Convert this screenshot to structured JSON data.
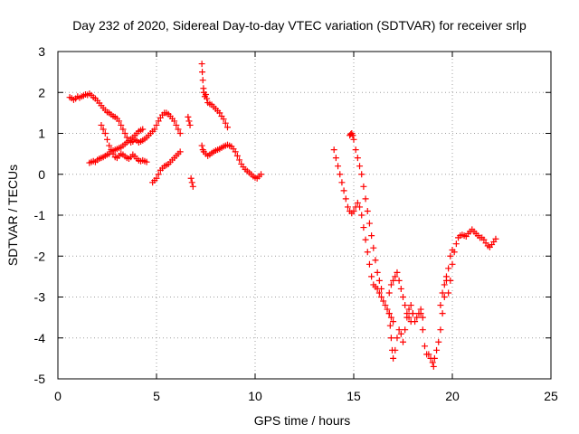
{
  "chart_data": {
    "type": "scatter",
    "title": "Day 232 of 2020, Sidereal Day-to-day VTEC variation (SDTVAR) for receiver srlp",
    "xlabel": "GPS time / hours",
    "ylabel": "SDTVAR / TECUs",
    "xlim": [
      0,
      25
    ],
    "ylim": [
      -5,
      3
    ],
    "x_ticks": [
      0,
      5,
      10,
      15,
      20,
      25
    ],
    "y_ticks": [
      -5,
      -4,
      -3,
      -2,
      -1,
      0,
      1,
      2,
      3
    ],
    "x_tick_labels": [
      "0",
      "5",
      "10",
      "15",
      "20",
      "25"
    ],
    "y_tick_labels": [
      "-5",
      "-4",
      "-3",
      "-2",
      "-1",
      "0",
      "1",
      "2",
      "3"
    ],
    "grid": true,
    "marker": "plus",
    "color": "#ff0000",
    "series": [
      {
        "points": [
          [
            0.6,
            1.88
          ],
          [
            0.7,
            1.86
          ],
          [
            0.8,
            1.82
          ],
          [
            0.9,
            1.85
          ],
          [
            1.0,
            1.9
          ],
          [
            1.1,
            1.87
          ],
          [
            1.2,
            1.9
          ],
          [
            1.3,
            1.92
          ],
          [
            1.4,
            1.95
          ],
          [
            1.5,
            1.94
          ],
          [
            1.6,
            1.97
          ],
          [
            1.7,
            1.93
          ],
          [
            1.8,
            1.88
          ],
          [
            1.9,
            1.85
          ],
          [
            2.0,
            1.8
          ],
          [
            2.1,
            1.74
          ],
          [
            2.2,
            1.68
          ],
          [
            2.3,
            1.62
          ],
          [
            2.4,
            1.57
          ],
          [
            2.5,
            1.52
          ],
          [
            2.6,
            1.5
          ],
          [
            2.7,
            1.46
          ],
          [
            2.8,
            1.42
          ],
          [
            2.9,
            1.4
          ],
          [
            3.0,
            1.36
          ],
          [
            3.1,
            1.3
          ],
          [
            3.2,
            1.2
          ],
          [
            3.3,
            1.1
          ],
          [
            3.4,
            1.0
          ],
          [
            3.5,
            0.9
          ],
          [
            3.6,
            0.82
          ],
          [
            3.7,
            0.78
          ],
          [
            3.8,
            0.8
          ],
          [
            3.9,
            0.85
          ],
          [
            4.0,
            0.82
          ],
          [
            4.1,
            0.78
          ],
          [
            4.2,
            0.8
          ],
          [
            4.3,
            0.83
          ],
          [
            4.4,
            0.86
          ],
          [
            4.5,
            0.9
          ],
          [
            4.6,
            0.95
          ],
          [
            4.7,
            1.0
          ],
          [
            4.8,
            1.05
          ],
          [
            4.9,
            1.1
          ],
          [
            5.0,
            1.2
          ],
          [
            5.1,
            1.3
          ],
          [
            5.2,
            1.38
          ],
          [
            5.3,
            1.45
          ],
          [
            5.4,
            1.5
          ],
          [
            5.5,
            1.5
          ],
          [
            5.6,
            1.47
          ],
          [
            5.7,
            1.42
          ],
          [
            5.8,
            1.36
          ],
          [
            5.9,
            1.3
          ],
          [
            6.0,
            1.2
          ],
          [
            6.1,
            1.1
          ],
          [
            6.2,
            1.0
          ]
        ]
      },
      {
        "points": [
          [
            1.6,
            0.28
          ],
          [
            1.7,
            0.3
          ],
          [
            1.8,
            0.32
          ],
          [
            1.9,
            0.3
          ],
          [
            2.0,
            0.35
          ],
          [
            2.1,
            0.38
          ],
          [
            2.2,
            0.4
          ],
          [
            2.3,
            0.42
          ],
          [
            2.4,
            0.45
          ],
          [
            2.5,
            0.48
          ],
          [
            2.6,
            0.5
          ],
          [
            2.7,
            0.55
          ],
          [
            2.8,
            0.58
          ],
          [
            2.9,
            0.6
          ],
          [
            3.0,
            0.62
          ],
          [
            3.1,
            0.64
          ],
          [
            3.2,
            0.66
          ],
          [
            3.3,
            0.7
          ],
          [
            3.4,
            0.74
          ],
          [
            3.5,
            0.78
          ],
          [
            3.6,
            0.82
          ],
          [
            3.7,
            0.86
          ],
          [
            3.8,
            0.9
          ],
          [
            3.9,
            0.95
          ],
          [
            4.0,
            1.0
          ],
          [
            4.1,
            1.05
          ],
          [
            4.2,
            1.08
          ],
          [
            4.3,
            1.1
          ]
        ]
      },
      {
        "points": [
          [
            2.2,
            1.2
          ],
          [
            2.3,
            1.1
          ],
          [
            2.4,
            1.0
          ],
          [
            2.5,
            0.85
          ],
          [
            2.6,
            0.7
          ],
          [
            2.7,
            0.6
          ],
          [
            2.8,
            0.5
          ],
          [
            2.9,
            0.42
          ],
          [
            3.0,
            0.4
          ],
          [
            3.1,
            0.45
          ],
          [
            3.2,
            0.5
          ],
          [
            3.3,
            0.48
          ],
          [
            3.4,
            0.44
          ],
          [
            3.5,
            0.4
          ],
          [
            3.6,
            0.38
          ],
          [
            3.7,
            0.42
          ],
          [
            3.8,
            0.48
          ],
          [
            3.9,
            0.44
          ],
          [
            4.0,
            0.38
          ],
          [
            4.1,
            0.34
          ],
          [
            4.2,
            0.32
          ],
          [
            4.3,
            0.34
          ],
          [
            4.4,
            0.32
          ],
          [
            4.5,
            0.3
          ]
        ]
      },
      {
        "points": [
          [
            4.8,
            -0.2
          ],
          [
            4.9,
            -0.15
          ],
          [
            5.0,
            -0.1
          ],
          [
            5.1,
            0.0
          ],
          [
            5.2,
            0.1
          ],
          [
            5.3,
            0.15
          ],
          [
            5.4,
            0.2
          ],
          [
            5.5,
            0.22
          ],
          [
            5.6,
            0.25
          ],
          [
            5.7,
            0.3
          ],
          [
            5.8,
            0.35
          ],
          [
            5.9,
            0.4
          ],
          [
            6.0,
            0.45
          ],
          [
            6.1,
            0.5
          ],
          [
            6.2,
            0.55
          ]
        ]
      },
      {
        "points": [
          [
            6.6,
            1.4
          ],
          [
            6.65,
            1.3
          ],
          [
            6.7,
            1.2
          ],
          [
            6.75,
            -0.1
          ],
          [
            6.8,
            -0.2
          ],
          [
            6.85,
            -0.3
          ]
        ]
      },
      {
        "points": [
          [
            7.3,
            2.7
          ],
          [
            7.32,
            2.5
          ],
          [
            7.35,
            2.3
          ],
          [
            7.38,
            2.1
          ],
          [
            7.4,
            2.0
          ],
          [
            7.45,
            1.9
          ],
          [
            7.5,
            1.95
          ],
          [
            7.55,
            1.85
          ],
          [
            7.6,
            1.75
          ],
          [
            7.7,
            1.72
          ],
          [
            7.8,
            1.7
          ],
          [
            7.9,
            1.65
          ],
          [
            8.0,
            1.6
          ],
          [
            8.1,
            1.55
          ],
          [
            8.2,
            1.5
          ],
          [
            8.3,
            1.42
          ],
          [
            8.4,
            1.35
          ],
          [
            8.5,
            1.25
          ],
          [
            8.6,
            1.15
          ]
        ]
      },
      {
        "points": [
          [
            7.3,
            0.7
          ],
          [
            7.35,
            0.6
          ],
          [
            7.4,
            0.55
          ],
          [
            7.5,
            0.5
          ],
          [
            7.6,
            0.45
          ],
          [
            7.7,
            0.48
          ],
          [
            7.8,
            0.52
          ],
          [
            7.9,
            0.55
          ],
          [
            8.0,
            0.58
          ],
          [
            8.1,
            0.6
          ],
          [
            8.2,
            0.62
          ],
          [
            8.3,
            0.65
          ],
          [
            8.4,
            0.68
          ],
          [
            8.5,
            0.7
          ],
          [
            8.6,
            0.72
          ],
          [
            8.7,
            0.7
          ],
          [
            8.8,
            0.68
          ],
          [
            8.9,
            0.62
          ],
          [
            9.0,
            0.55
          ],
          [
            9.1,
            0.45
          ],
          [
            9.2,
            0.35
          ],
          [
            9.3,
            0.25
          ],
          [
            9.4,
            0.18
          ],
          [
            9.5,
            0.12
          ],
          [
            9.6,
            0.08
          ],
          [
            9.7,
            0.04
          ],
          [
            9.8,
            0.0
          ],
          [
            9.9,
            -0.05
          ],
          [
            10.0,
            -0.08
          ],
          [
            10.1,
            -0.1
          ],
          [
            10.2,
            -0.05
          ],
          [
            10.3,
            0.0
          ]
        ]
      },
      {
        "points": [
          [
            14.0,
            0.6
          ],
          [
            14.1,
            0.4
          ],
          [
            14.2,
            0.2
          ],
          [
            14.3,
            0.0
          ],
          [
            14.4,
            -0.2
          ],
          [
            14.5,
            -0.4
          ],
          [
            14.6,
            -0.6
          ],
          [
            14.7,
            -0.8
          ],
          [
            14.8,
            -0.9
          ],
          [
            14.9,
            -0.95
          ],
          [
            15.0,
            -0.9
          ],
          [
            15.1,
            -0.8
          ],
          [
            15.2,
            -0.7
          ],
          [
            15.3,
            -0.8
          ],
          [
            15.4,
            -1.0
          ],
          [
            15.5,
            -1.3
          ],
          [
            15.6,
            -1.6
          ],
          [
            15.7,
            -1.9
          ],
          [
            15.8,
            -2.2
          ],
          [
            15.9,
            -2.5
          ],
          [
            16.0,
            -2.7
          ],
          [
            16.1,
            -2.75
          ],
          [
            16.2,
            -2.8
          ],
          [
            16.3,
            -2.9
          ],
          [
            16.4,
            -3.0
          ],
          [
            16.5,
            -3.1
          ],
          [
            16.6,
            -3.2
          ],
          [
            16.7,
            -3.3
          ],
          [
            16.8,
            -3.4
          ],
          [
            16.9,
            -3.5
          ],
          [
            17.0,
            -3.6
          ]
        ]
      },
      {
        "points": [
          [
            14.8,
            0.95
          ],
          [
            14.85,
            0.98
          ],
          [
            14.9,
            1.0
          ],
          [
            14.95,
            0.95
          ],
          [
            15.0,
            0.85
          ],
          [
            15.1,
            0.6
          ],
          [
            15.2,
            0.4
          ],
          [
            15.3,
            0.2
          ],
          [
            15.4,
            0.0
          ],
          [
            15.5,
            -0.3
          ],
          [
            15.6,
            -0.6
          ],
          [
            15.7,
            -0.9
          ],
          [
            15.8,
            -1.2
          ],
          [
            15.9,
            -1.5
          ],
          [
            16.0,
            -1.8
          ],
          [
            16.1,
            -2.1
          ],
          [
            16.2,
            -2.4
          ],
          [
            16.3,
            -2.6
          ],
          [
            16.4,
            -2.8
          ]
        ]
      },
      {
        "points": [
          [
            16.8,
            -3.4
          ],
          [
            16.85,
            -3.7
          ],
          [
            16.9,
            -4.0
          ],
          [
            16.95,
            -4.3
          ],
          [
            17.0,
            -4.5
          ],
          [
            17.1,
            -4.3
          ],
          [
            17.2,
            -4.0
          ],
          [
            17.3,
            -3.8
          ],
          [
            17.4,
            -3.9
          ],
          [
            17.5,
            -4.1
          ],
          [
            17.6,
            -3.8
          ],
          [
            17.7,
            -3.5
          ],
          [
            17.8,
            -3.3
          ],
          [
            17.9,
            -3.2
          ],
          [
            18.0,
            -3.4
          ],
          [
            18.1,
            -3.6
          ],
          [
            18.2,
            -3.5
          ],
          [
            18.3,
            -3.4
          ],
          [
            18.4,
            -3.3
          ],
          [
            18.5,
            -3.5
          ]
        ]
      },
      {
        "points": [
          [
            16.8,
            -2.9
          ],
          [
            16.9,
            -2.7
          ],
          [
            17.0,
            -2.6
          ],
          [
            17.1,
            -2.5
          ],
          [
            17.2,
            -2.4
          ],
          [
            17.3,
            -2.6
          ],
          [
            17.4,
            -2.8
          ],
          [
            17.5,
            -3.0
          ],
          [
            17.6,
            -3.2
          ],
          [
            17.7,
            -3.4
          ],
          [
            17.8,
            -3.5
          ],
          [
            17.9,
            -3.6
          ],
          [
            18.0,
            -3.4
          ]
        ]
      },
      {
        "points": [
          [
            18.4,
            -3.4
          ],
          [
            18.5,
            -3.8
          ],
          [
            18.6,
            -4.2
          ],
          [
            18.7,
            -4.4
          ],
          [
            18.8,
            -4.4
          ],
          [
            18.9,
            -4.5
          ],
          [
            19.0,
            -4.6
          ],
          [
            19.05,
            -4.7
          ],
          [
            19.1,
            -4.5
          ],
          [
            19.2,
            -4.3
          ],
          [
            19.3,
            -4.1
          ],
          [
            19.4,
            -3.8
          ],
          [
            19.5,
            -3.4
          ],
          [
            19.6,
            -3.0
          ],
          [
            19.7,
            -2.6
          ],
          [
            19.8,
            -2.3
          ],
          [
            19.9,
            -2.0
          ],
          [
            20.0,
            -1.85
          ]
        ]
      },
      {
        "points": [
          [
            19.4,
            -3.2
          ],
          [
            19.5,
            -2.9
          ],
          [
            19.6,
            -2.7
          ],
          [
            19.7,
            -2.5
          ],
          [
            19.8,
            -2.9
          ],
          [
            19.9,
            -2.6
          ],
          [
            20.0,
            -2.2
          ],
          [
            20.1,
            -1.9
          ],
          [
            20.2,
            -1.7
          ],
          [
            20.3,
            -1.55
          ],
          [
            20.4,
            -1.5
          ],
          [
            20.5,
            -1.48
          ],
          [
            20.6,
            -1.5
          ],
          [
            20.7,
            -1.52
          ],
          [
            20.8,
            -1.45
          ],
          [
            20.9,
            -1.4
          ],
          [
            21.0,
            -1.35
          ],
          [
            21.1,
            -1.4
          ],
          [
            21.2,
            -1.45
          ],
          [
            21.3,
            -1.5
          ],
          [
            21.4,
            -1.55
          ],
          [
            21.5,
            -1.55
          ],
          [
            21.6,
            -1.6
          ],
          [
            21.7,
            -1.68
          ],
          [
            21.8,
            -1.75
          ],
          [
            21.9,
            -1.78
          ],
          [
            22.0,
            -1.72
          ],
          [
            22.1,
            -1.65
          ],
          [
            22.2,
            -1.58
          ]
        ]
      }
    ]
  }
}
